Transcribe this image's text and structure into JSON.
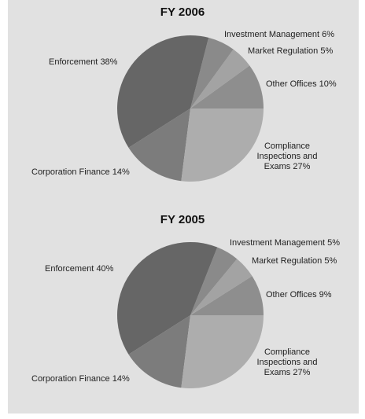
{
  "chart_data": [
    {
      "type": "pie",
      "title": "FY 2006",
      "categories": [
        "Other Offices",
        "Market Regulation",
        "Investment Management",
        "Enforcement",
        "Corporation Finance",
        "Compliance Inspections and Exams"
      ],
      "values": [
        10,
        5,
        6,
        38,
        14,
        27
      ],
      "value_labels": [
        "10%",
        "5%",
        "6%",
        "38%",
        "14%",
        "27%"
      ],
      "colors": [
        "#8e8e8e",
        "#a3a3a3",
        "#8a8a8a",
        "#666666",
        "#7c7c7c",
        "#adadad"
      ]
    },
    {
      "type": "pie",
      "title": "FY 2005",
      "categories": [
        "Other Offices",
        "Market Regulation",
        "Investment Management",
        "Enforcement",
        "Corporation Finance",
        "Compliance Inspections and Exams"
      ],
      "values": [
        9,
        5,
        5,
        40,
        14,
        27
      ],
      "value_labels": [
        "9%",
        "5%",
        "5%",
        "40%",
        "14%",
        "27%"
      ],
      "colors": [
        "#8e8e8e",
        "#a3a3a3",
        "#8a8a8a",
        "#666666",
        "#7c7c7c",
        "#adadad"
      ]
    }
  ]
}
